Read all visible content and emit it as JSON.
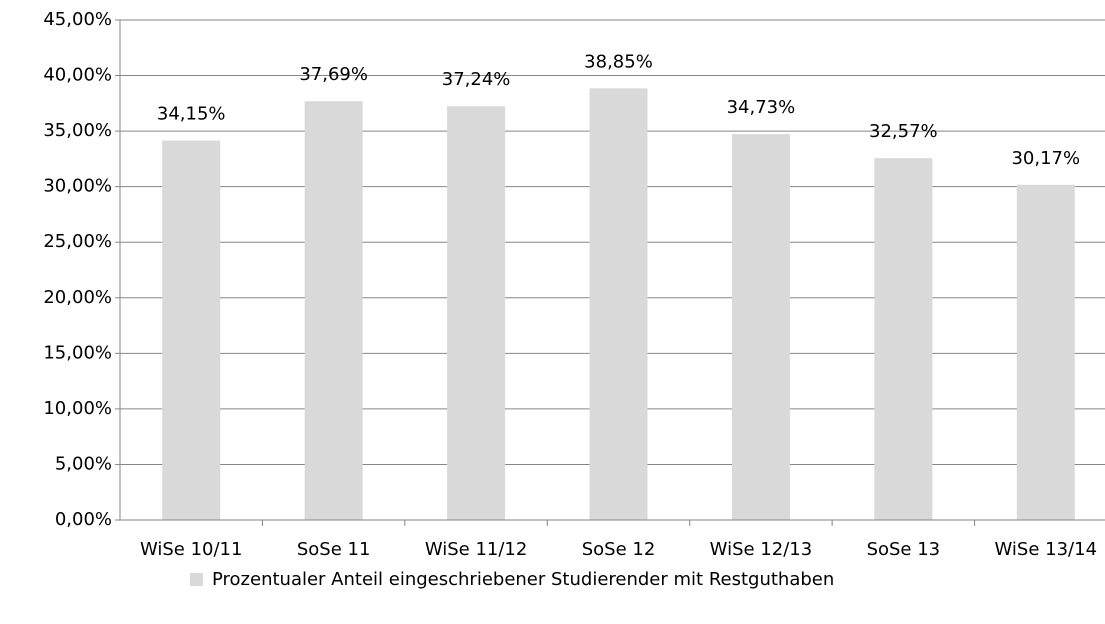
{
  "chart_data": {
    "type": "bar",
    "categories": [
      "WiSe 10/11",
      "SoSe 11",
      "WiSe 11/12",
      "SoSe 12",
      "WiSe 12/13",
      "SoSe 13",
      "WiSe 13/14"
    ],
    "series": [
      {
        "name": "Prozentualer Anteil eingeschriebener Studierender mit Restguthaben",
        "color": "#d9d9d9",
        "values": [
          34.15,
          37.69,
          37.24,
          38.85,
          34.73,
          32.57,
          30.17
        ],
        "value_labels": [
          "34,15%",
          "37,69%",
          "37,24%",
          "38,85%",
          "34,73%",
          "32,57%",
          "30,17%"
        ]
      }
    ],
    "ylim": [
      0,
      45
    ],
    "yticks": [
      {
        "value": 0,
        "label": "0,00%"
      },
      {
        "value": 5,
        "label": "5,00%"
      },
      {
        "value": 10,
        "label": "10,00%"
      },
      {
        "value": 15,
        "label": "15,00%"
      },
      {
        "value": 20,
        "label": "20,00%"
      },
      {
        "value": 25,
        "label": "25,00%"
      },
      {
        "value": 30,
        "label": "30,00%"
      },
      {
        "value": 35,
        "label": "35,00%"
      },
      {
        "value": 40,
        "label": "40,00%"
      },
      {
        "value": 45,
        "label": "45,00%"
      }
    ],
    "grid": true,
    "legend": "bottom"
  }
}
